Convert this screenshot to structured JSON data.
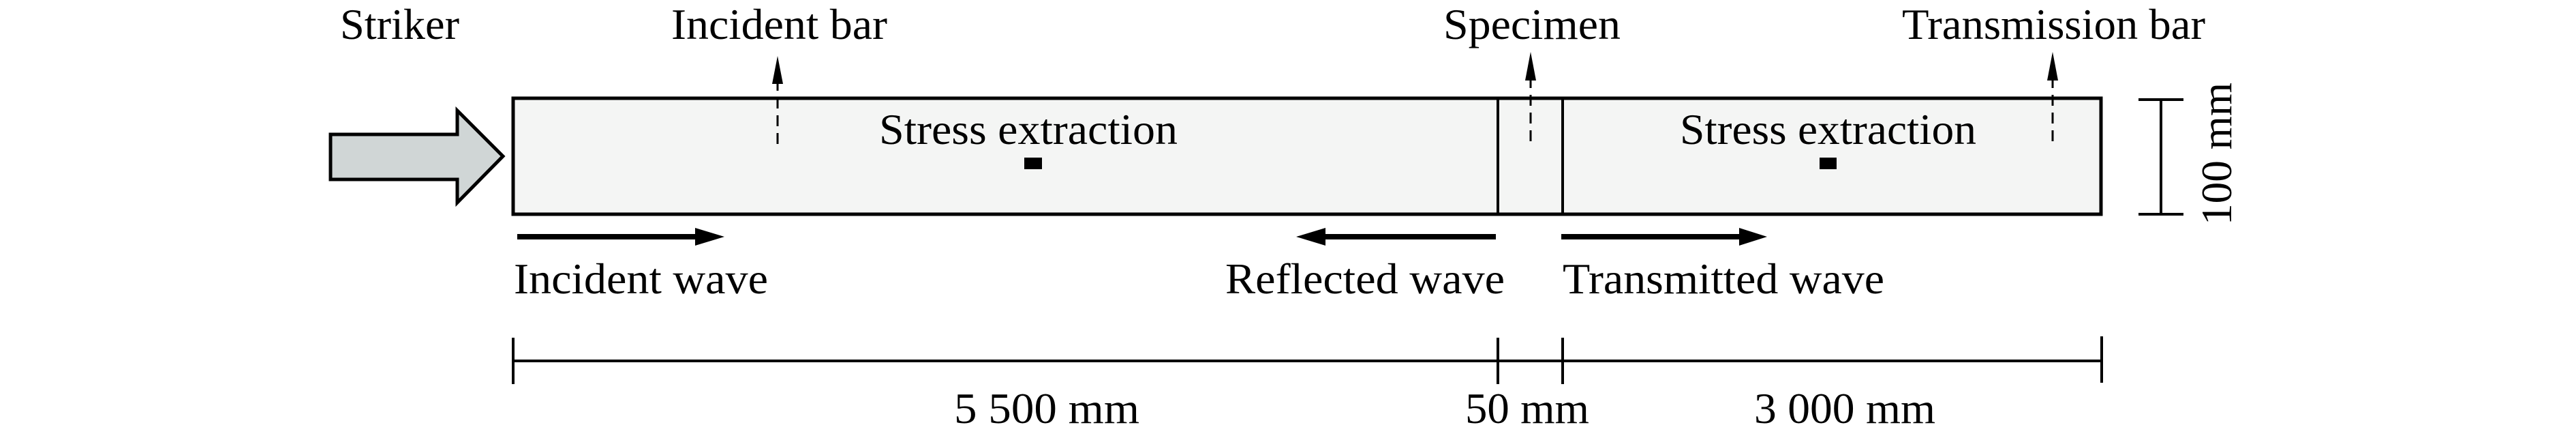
{
  "labels": {
    "striker": "Striker",
    "incident_bar": "Incident bar",
    "specimen": "Specimen",
    "transmission_bar": "Transmission bar",
    "stress_extraction_1": "Stress extraction",
    "stress_extraction_2": "Stress extraction",
    "incident_wave": "Incident wave",
    "reflected_wave": "Reflected wave",
    "transmitted_wave": "Transmitted wave"
  },
  "dimensions": {
    "incident_length": "5 500 mm",
    "specimen_length": "50 mm",
    "transmission_length": "3 000 mm",
    "bar_diameter": "100 mm"
  },
  "colors": {
    "bar_fill": "#f4f5f4",
    "striker_fill": "#d0d6d6",
    "line": "#000000"
  }
}
